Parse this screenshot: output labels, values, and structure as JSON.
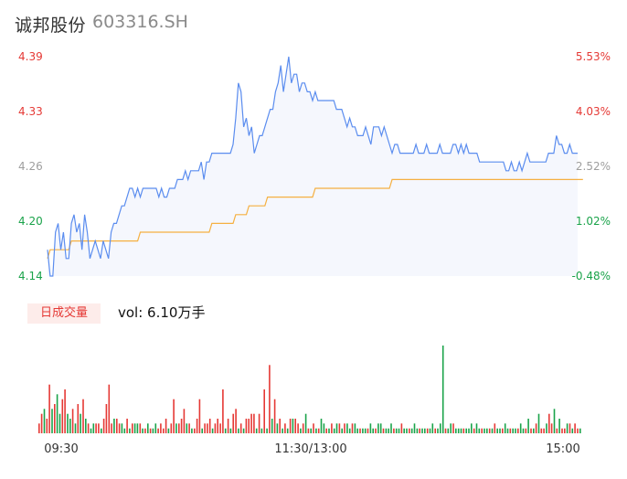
{
  "stock": {
    "name": "诚邦股份",
    "code": "603316.SH"
  },
  "volume_panel": {
    "badge": "日成交量",
    "value_text": "vol: 6.10万手"
  },
  "colors": {
    "price_line": "#5b8def",
    "avg_line": "#f5b041",
    "up": "#e53935",
    "down": "#1aa34a",
    "flat": "#9e9e9e",
    "area_fill": "#f5f7fd"
  },
  "chart_data": [
    {
      "type": "line",
      "title": "",
      "x_ticks": [
        "09:30",
        "11:30/13:00",
        "15:00"
      ],
      "y_ticks_left": [
        "4.39",
        "4.33",
        "4.26",
        "4.20",
        "4.14"
      ],
      "y_ticks_right": [
        "5.53%",
        "4.03%",
        "2.52%",
        "1.02%",
        "-0.48%"
      ],
      "ylim": [
        4.14,
        4.39
      ],
      "prev_close_pct_ref": "2.52%",
      "series": [
        {
          "role": "price",
          "values": [
            4.17,
            4.14,
            4.14,
            4.19,
            4.2,
            4.17,
            4.19,
            4.16,
            4.16,
            4.2,
            4.21,
            4.19,
            4.2,
            4.17,
            4.21,
            4.19,
            4.16,
            4.17,
            4.18,
            4.17,
            4.16,
            4.18,
            4.17,
            4.16,
            4.19,
            4.2,
            4.2,
            4.21,
            4.22,
            4.22,
            4.23,
            4.24,
            4.24,
            4.23,
            4.24,
            4.23,
            4.24,
            4.24,
            4.24,
            4.24,
            4.24,
            4.24,
            4.23,
            4.24,
            4.23,
            4.23,
            4.24,
            4.24,
            4.24,
            4.25,
            4.25,
            4.25,
            4.26,
            4.25,
            4.26,
            4.26,
            4.26,
            4.26,
            4.27,
            4.25,
            4.27,
            4.27,
            4.28,
            4.28,
            4.28,
            4.28,
            4.28,
            4.28,
            4.28,
            4.28,
            4.29,
            4.32,
            4.36,
            4.35,
            4.31,
            4.32,
            4.3,
            4.31,
            4.28,
            4.29,
            4.3,
            4.3,
            4.31,
            4.32,
            4.33,
            4.33,
            4.35,
            4.36,
            4.38,
            4.35,
            4.37,
            4.39,
            4.36,
            4.37,
            4.37,
            4.35,
            4.36,
            4.36,
            4.35,
            4.35,
            4.34,
            4.35,
            4.34,
            4.34,
            4.34,
            4.34,
            4.34,
            4.34,
            4.34,
            4.33,
            4.33,
            4.33,
            4.32,
            4.31,
            4.32,
            4.31,
            4.31,
            4.3,
            4.3,
            4.3,
            4.31,
            4.3,
            4.29,
            4.31,
            4.31,
            4.31,
            4.3,
            4.31,
            4.3,
            4.29,
            4.28,
            4.29,
            4.29,
            4.28,
            4.28,
            4.28,
            4.28,
            4.28,
            4.28,
            4.29,
            4.28,
            4.28,
            4.28,
            4.29,
            4.28,
            4.28,
            4.28,
            4.28,
            4.29,
            4.28,
            4.28,
            4.28,
            4.28,
            4.29,
            4.29,
            4.28,
            4.29,
            4.28,
            4.29,
            4.28,
            4.28,
            4.28,
            4.28,
            4.27,
            4.27,
            4.27,
            4.27,
            4.27,
            4.27,
            4.27,
            4.27,
            4.27,
            4.27,
            4.26,
            4.26,
            4.27,
            4.26,
            4.26,
            4.27,
            4.26,
            4.27,
            4.28,
            4.27,
            4.27,
            4.27,
            4.27,
            4.27,
            4.27,
            4.27,
            4.28,
            4.28,
            4.28,
            4.3,
            4.29,
            4.29,
            4.28,
            4.28,
            4.29,
            4.28,
            4.28,
            4.28
          ]
        },
        {
          "role": "average",
          "values": [
            4.16,
            4.17,
            4.17,
            4.17,
            4.17,
            4.17,
            4.17,
            4.17,
            4.17,
            4.18,
            4.18,
            4.18,
            4.18,
            4.18,
            4.18,
            4.18,
            4.18,
            4.18,
            4.18,
            4.18,
            4.18,
            4.18,
            4.18,
            4.18,
            4.18,
            4.18,
            4.18,
            4.18,
            4.18,
            4.18,
            4.18,
            4.18,
            4.18,
            4.18,
            4.18,
            4.19,
            4.19,
            4.19,
            4.19,
            4.19,
            4.19,
            4.19,
            4.19,
            4.19,
            4.19,
            4.19,
            4.19,
            4.19,
            4.19,
            4.19,
            4.19,
            4.19,
            4.19,
            4.19,
            4.19,
            4.19,
            4.19,
            4.19,
            4.19,
            4.19,
            4.19,
            4.19,
            4.2,
            4.2,
            4.2,
            4.2,
            4.2,
            4.2,
            4.2,
            4.2,
            4.2,
            4.21,
            4.21,
            4.21,
            4.21,
            4.21,
            4.22,
            4.22,
            4.22,
            4.22,
            4.22,
            4.22,
            4.22,
            4.23,
            4.23,
            4.23,
            4.23,
            4.23,
            4.23,
            4.23,
            4.23,
            4.23,
            4.23,
            4.23,
            4.23,
            4.23,
            4.23,
            4.23,
            4.23,
            4.23,
            4.23,
            4.24,
            4.24,
            4.24,
            4.24,
            4.24,
            4.24,
            4.24,
            4.24,
            4.24,
            4.24,
            4.24,
            4.24,
            4.24,
            4.24,
            4.24,
            4.24,
            4.24,
            4.24,
            4.24,
            4.24,
            4.24,
            4.24,
            4.24,
            4.24,
            4.24,
            4.24,
            4.24,
            4.24,
            4.24,
            4.25,
            4.25,
            4.25,
            4.25,
            4.25,
            4.25,
            4.25,
            4.25,
            4.25,
            4.25,
            4.25,
            4.25,
            4.25,
            4.25,
            4.25,
            4.25,
            4.25,
            4.25,
            4.25,
            4.25,
            4.25,
            4.25,
            4.25,
            4.25,
            4.25,
            4.25,
            4.25,
            4.25,
            4.25,
            4.25,
            4.25,
            4.25,
            4.25,
            4.25,
            4.25,
            4.25,
            4.25,
            4.25,
            4.25,
            4.25,
            4.25,
            4.25,
            4.25,
            4.25,
            4.25,
            4.25,
            4.25,
            4.25,
            4.25,
            4.25,
            4.25,
            4.25,
            4.25,
            4.25,
            4.25,
            4.25,
            4.25,
            4.25,
            4.25,
            4.25,
            4.25,
            4.25,
            4.25,
            4.25,
            4.25,
            4.25,
            4.25,
            4.25,
            4.25,
            4.25,
            4.25,
            4.25,
            4.25
          ]
        }
      ]
    },
    {
      "type": "bar",
      "title": "",
      "series": [
        {
          "role": "volume",
          "values": [
            4,
            8,
            10,
            6,
            20,
            10,
            12,
            16,
            8,
            14,
            18,
            8,
            6,
            10,
            4,
            12,
            8,
            14,
            6,
            4,
            2,
            4,
            4,
            4,
            2,
            6,
            12,
            20,
            4,
            6,
            6,
            4,
            4,
            2,
            6,
            2,
            4,
            4,
            4,
            4,
            2,
            2,
            4,
            2,
            2,
            4,
            2,
            4,
            2,
            6,
            2,
            4,
            14,
            4,
            4,
            6,
            10,
            4,
            4,
            2,
            2,
            6,
            14,
            2,
            4,
            4,
            6,
            2,
            4,
            6,
            4,
            18,
            2,
            6,
            2,
            8,
            10,
            2,
            4,
            2,
            6,
            6,
            8,
            8,
            2,
            8,
            2,
            18,
            2,
            28,
            6,
            14,
            4,
            6,
            2,
            4,
            2,
            6,
            6,
            6,
            4,
            2,
            4,
            8,
            2,
            2,
            4,
            2,
            2,
            6,
            4,
            2,
            2,
            4,
            2,
            4,
            4,
            2,
            4,
            4,
            2,
            4,
            4,
            2,
            2,
            2,
            2,
            2,
            4,
            2,
            2,
            4,
            4,
            2,
            2,
            2,
            4,
            2,
            2,
            2,
            4,
            2,
            2,
            2,
            2,
            4,
            2,
            2,
            2,
            2,
            2,
            2,
            4,
            2,
            2,
            4,
            36,
            2,
            2,
            4,
            4,
            2,
            2,
            2,
            2,
            2,
            2,
            4,
            2,
            4,
            2,
            2,
            2,
            2,
            2,
            2,
            4,
            2,
            2,
            2,
            4,
            2,
            2,
            2,
            2,
            2,
            4,
            2,
            2,
            6,
            2,
            2,
            4,
            8,
            2,
            2,
            4,
            8,
            4,
            10,
            2,
            6,
            2,
            2,
            4,
            4,
            2,
            4,
            2,
            2
          ],
          "directions": [
            "up",
            "up",
            "down",
            "up",
            "up",
            "down",
            "up",
            "down",
            "down",
            "up",
            "up",
            "down",
            "down",
            "up",
            "down",
            "up",
            "down",
            "up",
            "down",
            "up",
            "down",
            "down",
            "up",
            "up",
            "down",
            "up",
            "up",
            "up",
            "up",
            "down",
            "up",
            "up",
            "down",
            "down",
            "up",
            "down",
            "up",
            "down",
            "down",
            "up",
            "down",
            "up",
            "down",
            "up",
            "down",
            "down",
            "up",
            "up",
            "up",
            "up",
            "down",
            "up",
            "up",
            "down",
            "up",
            "up",
            "up",
            "down",
            "up",
            "down",
            "up",
            "up",
            "up",
            "down",
            "up",
            "up",
            "up",
            "down",
            "up",
            "up",
            "up",
            "up",
            "down",
            "up",
            "down",
            "up",
            "up",
            "down",
            "up",
            "down",
            "up",
            "up",
            "up",
            "up",
            "down",
            "up",
            "down",
            "up",
            "down",
            "up",
            "down",
            "up",
            "down",
            "up",
            "down",
            "up",
            "down",
            "up",
            "down",
            "up",
            "up",
            "down",
            "up",
            "down",
            "up",
            "down",
            "up",
            "down",
            "up",
            "down",
            "down",
            "up",
            "down",
            "up",
            "down",
            "down",
            "up",
            "down",
            "up",
            "down",
            "down",
            "up",
            "down",
            "down",
            "up",
            "down",
            "down",
            "up",
            "down",
            "down",
            "up",
            "down",
            "down",
            "up",
            "down",
            "down",
            "down",
            "up",
            "down",
            "down",
            "up",
            "down",
            "down",
            "up",
            "down",
            "down",
            "down",
            "up",
            "down",
            "down",
            "up",
            "down",
            "down",
            "up",
            "down",
            "down",
            "down",
            "up",
            "down",
            "down",
            "up",
            "down",
            "down",
            "down",
            "up",
            "down",
            "down",
            "down",
            "up",
            "down",
            "down",
            "up",
            "down",
            "down",
            "up",
            "down",
            "up",
            "down",
            "down",
            "up",
            "down",
            "down",
            "up",
            "down",
            "down",
            "up",
            "down",
            "down",
            "up",
            "down",
            "up",
            "down",
            "up",
            "down",
            "up",
            "up",
            "down",
            "up",
            "up",
            "down",
            "up",
            "down",
            "up",
            "up",
            "down",
            "up",
            "down",
            "up",
            "up",
            "down",
            "up",
            "down",
            "up",
            "up"
          ]
        }
      ]
    }
  ]
}
